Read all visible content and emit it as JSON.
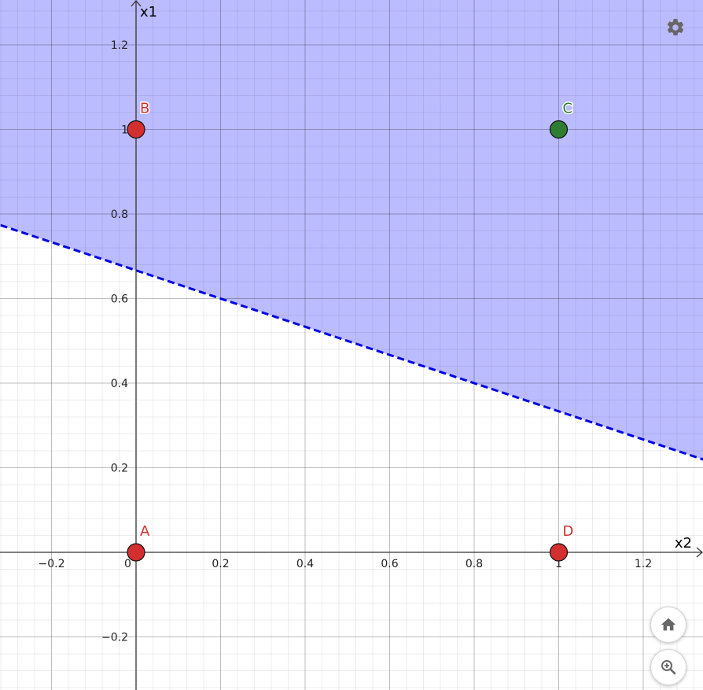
{
  "chart_data": {
    "type": "scatter",
    "xlabel": "x2",
    "ylabel": "x1",
    "xlim": [
      -0.32,
      1.34
    ],
    "ylim": [
      -0.325,
      1.31
    ],
    "x_ticks": [
      -0.2,
      0,
      0.2,
      0.4,
      0.6,
      0.8,
      1,
      1.2
    ],
    "y_ticks": [
      -0.2,
      0.2,
      0.4,
      0.6,
      0.8,
      1,
      1.2
    ],
    "x_tick_labels": [
      "−0.2",
      "0",
      "0.2",
      "0.4",
      "0.6",
      "0.8",
      "1",
      "1.2"
    ],
    "y_tick_labels": [
      "−0.2",
      "0.2",
      "0.4",
      "0.6",
      "0.8",
      "1",
      "1.2"
    ],
    "grid": true,
    "points": [
      {
        "label": "A",
        "x": 0,
        "y": 0,
        "color": "#d32f2f"
      },
      {
        "label": "B",
        "x": 0,
        "y": 1,
        "color": "#d32f2f"
      },
      {
        "label": "C",
        "x": 1,
        "y": 1,
        "color": "#2e7d32"
      },
      {
        "label": "D",
        "x": 1,
        "y": 0,
        "color": "#d32f2f"
      }
    ],
    "boundary_line": {
      "slope": -0.3333,
      "intercept": 0.6667,
      "style": "dashed",
      "color": "#0000e6"
    },
    "shaded_region": {
      "side": "above",
      "color": "#b5b5ff"
    }
  },
  "controls": {
    "settings": "gear-icon",
    "home": "home-icon",
    "zoom": "zoom-in-icon"
  }
}
